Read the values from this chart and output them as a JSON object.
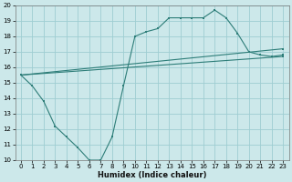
{
  "xlabel": "Humidex (Indice chaleur)",
  "xlim": [
    -0.5,
    23.5
  ],
  "ylim": [
    10,
    20
  ],
  "yticks": [
    10,
    11,
    12,
    13,
    14,
    15,
    16,
    17,
    18,
    19,
    20
  ],
  "xticks": [
    0,
    1,
    2,
    3,
    4,
    5,
    6,
    7,
    8,
    9,
    10,
    11,
    12,
    13,
    14,
    15,
    16,
    17,
    18,
    19,
    20,
    21,
    22,
    23
  ],
  "bg_color": "#cce8ea",
  "grid_color": "#9ecdd2",
  "line_color": "#2d7d78",
  "line1_x": [
    0,
    1,
    2,
    3,
    4,
    5,
    6,
    7,
    8,
    9,
    10,
    11,
    12,
    13,
    14,
    15,
    16,
    17,
    18,
    19,
    20,
    21,
    22,
    23
  ],
  "line1_y": [
    15.5,
    14.8,
    13.8,
    12.2,
    11.5,
    10.8,
    10.0,
    10.0,
    11.5,
    14.8,
    18.0,
    18.3,
    18.5,
    19.2,
    19.2,
    19.2,
    19.2,
    19.7,
    19.2,
    18.2,
    17.0,
    16.8,
    16.7,
    16.8
  ],
  "line2_x": [
    0,
    23
  ],
  "line2_y": [
    15.5,
    16.7
  ],
  "line3_x": [
    0,
    23
  ],
  "line3_y": [
    15.5,
    17.2
  ]
}
